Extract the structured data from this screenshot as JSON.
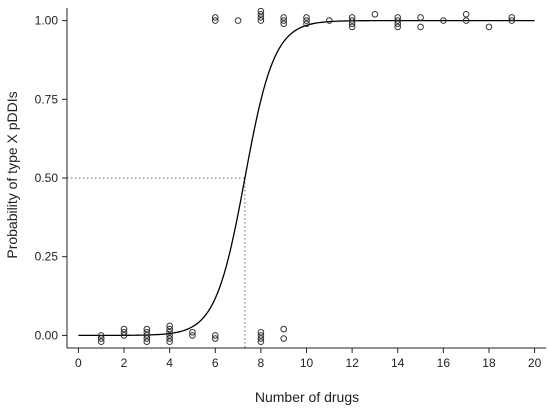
{
  "chart_data": {
    "type": "scatter",
    "xlabel": "Number of drugs",
    "ylabel": "Probability of type X pDDIs",
    "xlim": [
      -0.5,
      20.5
    ],
    "ylim": [
      -0.04,
      1.04
    ],
    "xticks": [
      0,
      2,
      4,
      6,
      8,
      10,
      12,
      14,
      16,
      18,
      20
    ],
    "yticks": [
      "0.00",
      "0.25",
      "0.50",
      "0.75",
      "1.00"
    ],
    "grid": false,
    "legend": "none",
    "fitted_curve": {
      "form": "logistic",
      "midpoint_x": 7.3,
      "slope": 1.55,
      "x_range": [
        0,
        20
      ]
    },
    "reference_lines": {
      "probability": 0.5,
      "number_of_drugs": 7.3,
      "style": "dotted"
    },
    "points": [
      [
        1,
        0.0
      ],
      [
        1,
        -0.01
      ],
      [
        1,
        -0.02
      ],
      [
        2,
        0.0
      ],
      [
        2,
        0.01
      ],
      [
        2,
        0.02
      ],
      [
        3,
        -0.01
      ],
      [
        3,
        0.0
      ],
      [
        3,
        0.01
      ],
      [
        3,
        0.02
      ],
      [
        3,
        -0.02
      ],
      [
        4,
        0.0
      ],
      [
        4,
        0.01
      ],
      [
        4,
        0.02
      ],
      [
        4,
        0.03
      ],
      [
        4,
        -0.01
      ],
      [
        4,
        -0.02
      ],
      [
        5,
        0.0
      ],
      [
        5,
        0.01
      ],
      [
        6,
        0.0
      ],
      [
        6,
        -0.01
      ],
      [
        6,
        1.0
      ],
      [
        6,
        1.01
      ],
      [
        7,
        1.0
      ],
      [
        8,
        0.0
      ],
      [
        8,
        0.01
      ],
      [
        8,
        -0.01
      ],
      [
        8,
        -0.02
      ],
      [
        8,
        1.0
      ],
      [
        8,
        1.01
      ],
      [
        8,
        1.02
      ],
      [
        8,
        1.03
      ],
      [
        9,
        0.02
      ],
      [
        9,
        -0.01
      ],
      [
        9,
        1.0
      ],
      [
        9,
        1.01
      ],
      [
        9,
        0.99
      ],
      [
        10,
        1.0
      ],
      [
        10,
        1.01
      ],
      [
        10,
        0.99
      ],
      [
        11,
        1.0
      ],
      [
        12,
        1.0
      ],
      [
        12,
        1.01
      ],
      [
        12,
        0.99
      ],
      [
        12,
        0.98
      ],
      [
        13,
        1.02
      ],
      [
        14,
        1.0
      ],
      [
        14,
        1.01
      ],
      [
        14,
        0.99
      ],
      [
        14,
        0.98
      ],
      [
        15,
        1.01
      ],
      [
        15,
        0.98
      ],
      [
        16,
        1.0
      ],
      [
        17,
        1.0
      ],
      [
        17,
        1.02
      ],
      [
        18,
        0.98
      ],
      [
        19,
        1.0
      ],
      [
        19,
        1.01
      ]
    ],
    "colors": {
      "axis": "#222222",
      "curve": "#000000",
      "point_stroke": "#333333",
      "reference_line": "#666666"
    }
  }
}
